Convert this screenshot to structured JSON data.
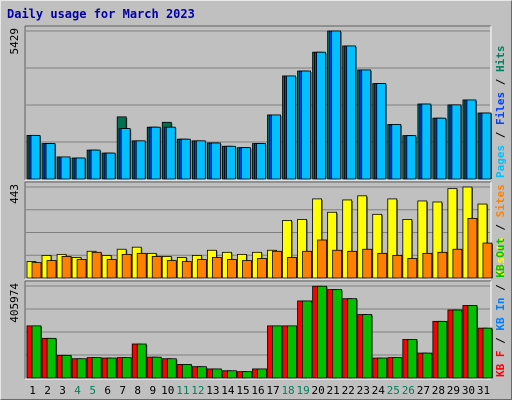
{
  "title": "Daily usage for March 2023",
  "chart_data": [
    {
      "type": "bar",
      "title": "Pages / Files / Hits",
      "categories": [
        "1",
        "2",
        "3",
        "4",
        "5",
        "6",
        "7",
        "8",
        "9",
        "10",
        "11",
        "12",
        "13",
        "14",
        "15",
        "16",
        "17",
        "18",
        "19",
        "20",
        "21",
        "22",
        "23",
        "24",
        "25",
        "26",
        "27",
        "28",
        "29",
        "30",
        "31"
      ],
      "ylim": [
        0,
        5429
      ],
      "ytick_label": "5429",
      "legend": [
        {
          "label": "Pages",
          "color": "#00c0ff"
        },
        {
          "label": "Files",
          "color": "#0040ff"
        },
        {
          "label": "Hits",
          "color": "#008060"
        }
      ],
      "series": [
        {
          "name": "Hits",
          "color": "#007050",
          "values": [
            1600,
            1300,
            810,
            770,
            1060,
            950,
            2280,
            1400,
            1900,
            2080,
            1460,
            1400,
            1320,
            1200,
            1150,
            1300,
            2350,
            3780,
            3960,
            4650,
            5429,
            4880,
            4000,
            3500,
            2000,
            1590,
            2750,
            2230,
            2720,
            2900,
            2420
          ]
        },
        {
          "name": "Files",
          "color": "#0040ff",
          "values": [
            1600,
            1300,
            810,
            770,
            1060,
            950,
            1850,
            1400,
            1900,
            1900,
            1460,
            1400,
            1320,
            1200,
            1150,
            1300,
            2350,
            3780,
            3960,
            4650,
            5429,
            4880,
            4000,
            3500,
            2000,
            1590,
            2750,
            2230,
            2720,
            2900,
            2420
          ]
        },
        {
          "name": "Pages",
          "color": "#00c0ff",
          "values": [
            1600,
            1300,
            810,
            770,
            1060,
            950,
            1850,
            1400,
            1900,
            1900,
            1460,
            1400,
            1320,
            1200,
            1150,
            1300,
            2350,
            3780,
            3960,
            4650,
            5429,
            4880,
            4000,
            3500,
            2000,
            1590,
            2750,
            2230,
            2720,
            2900,
            2420
          ]
        }
      ]
    },
    {
      "type": "bar",
      "title": "Visits / Sites",
      "categories": [
        "1",
        "2",
        "3",
        "4",
        "5",
        "6",
        "7",
        "8",
        "9",
        "10",
        "11",
        "12",
        "13",
        "14",
        "15",
        "16",
        "17",
        "18",
        "19",
        "20",
        "21",
        "22",
        "23",
        "24",
        "25",
        "26",
        "27",
        "28",
        "29",
        "30",
        "31"
      ],
      "ylim": [
        0,
        443
      ],
      "ytick_label": "443",
      "legend": [
        {
          "label": "Visits",
          "color": "#ffff00"
        },
        {
          "label": "Sites",
          "color": "#ff8000"
        }
      ],
      "series": [
        {
          "name": "Visits",
          "color": "#ffff00",
          "values": [
            80,
            110,
            115,
            100,
            130,
            110,
            140,
            150,
            120,
            105,
            100,
            110,
            135,
            125,
            115,
            125,
            135,
            280,
            285,
            385,
            320,
            380,
            400,
            310,
            385,
            285,
            375,
            370,
            435,
            443,
            360
          ]
        },
        {
          "name": "Sites",
          "color": "#ff8000",
          "values": [
            75,
            85,
            105,
            90,
            125,
            90,
            115,
            120,
            105,
            85,
            80,
            90,
            100,
            90,
            85,
            95,
            130,
            100,
            130,
            185,
            135,
            130,
            140,
            120,
            110,
            95,
            120,
            125,
            140,
            290,
            170
          ]
        }
      ]
    },
    {
      "type": "bar",
      "title": "KB F / KB In / KB Out",
      "categories": [
        "1",
        "2",
        "3",
        "4",
        "5",
        "6",
        "7",
        "8",
        "9",
        "10",
        "11",
        "12",
        "13",
        "14",
        "15",
        "16",
        "17",
        "18",
        "19",
        "20",
        "21",
        "22",
        "23",
        "24",
        "25",
        "26",
        "27",
        "28",
        "29",
        "30",
        "31"
      ],
      "ylim": [
        0,
        405974
      ],
      "ytick_label": "405974",
      "legend": [
        {
          "label": "KB F",
          "color": "#ff0000"
        },
        {
          "label": "KB In",
          "color": "#0080ff"
        },
        {
          "label": "KB Out",
          "color": "#00c000"
        }
      ],
      "series": [
        {
          "name": "KB F",
          "color": "#ff0000",
          "values": [
            230000,
            175000,
            100000,
            85000,
            90000,
            88000,
            90000,
            150000,
            92000,
            85000,
            60000,
            50000,
            40000,
            32000,
            28000,
            40000,
            230000,
            230000,
            340000,
            405000,
            390000,
            350000,
            280000,
            88000,
            90000,
            170000,
            110000,
            250000,
            300000,
            320000,
            220000
          ]
        },
        {
          "name": "KB Out",
          "color": "#00c000",
          "values": [
            230000,
            175000,
            100000,
            85000,
            90000,
            88000,
            90000,
            150000,
            92000,
            85000,
            60000,
            50000,
            40000,
            32000,
            28000,
            40000,
            230000,
            230000,
            340000,
            405000,
            390000,
            350000,
            280000,
            88000,
            90000,
            170000,
            110000,
            250000,
            300000,
            320000,
            220000
          ]
        }
      ]
    }
  ],
  "xaxis_highlight_days": [
    "4",
    "5",
    "11",
    "12",
    "18",
    "19",
    "25",
    "26"
  ]
}
